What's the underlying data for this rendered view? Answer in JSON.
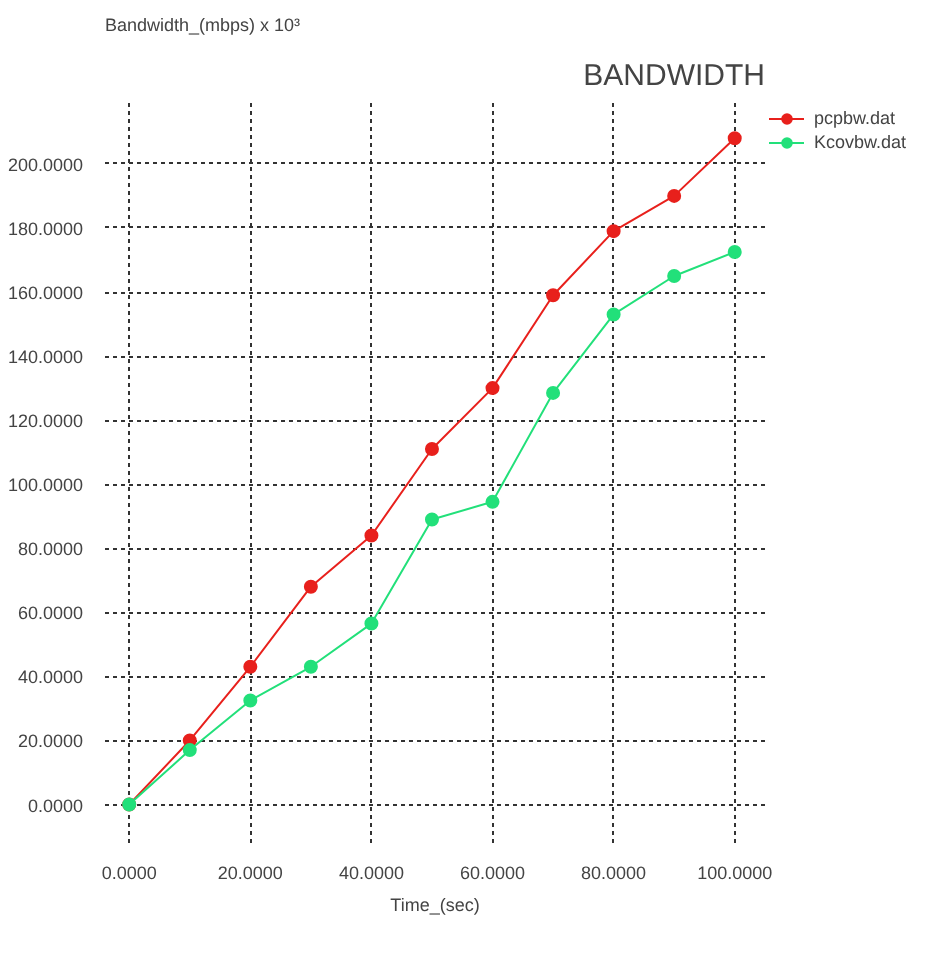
{
  "chart_data": {
    "type": "line",
    "title": "BANDWIDTH",
    "xlabel": "Time_(sec)",
    "ylabel": "Bandwidth_(mbps) x 10³",
    "x": [
      0,
      10,
      20,
      30,
      40,
      50,
      60,
      70,
      80,
      90,
      100
    ],
    "series": [
      {
        "name": "pcpbw.dat",
        "color": "#e8201c",
        "values": [
          0,
          20,
          43,
          68,
          84,
          111,
          130,
          159,
          179,
          190,
          208
        ]
      },
      {
        "name": "Kcovbw.dat",
        "color": "#22e07a",
        "values": [
          0,
          17,
          32.5,
          43,
          56.5,
          89,
          94.5,
          128.5,
          153,
          165,
          172.5
        ]
      }
    ],
    "xlim": [
      -4,
      105
    ],
    "ylim": [
      -12,
      219
    ],
    "xticks": [
      {
        "value": 0,
        "label": "0.0000"
      },
      {
        "value": 20,
        "label": "20.0000"
      },
      {
        "value": 40,
        "label": "40.0000"
      },
      {
        "value": 60,
        "label": "60.0000"
      },
      {
        "value": 80,
        "label": "80.0000"
      },
      {
        "value": 100,
        "label": "100.0000"
      }
    ],
    "yticks": [
      {
        "value": 0,
        "label": "0.0000"
      },
      {
        "value": 20,
        "label": "20.0000"
      },
      {
        "value": 40,
        "label": "40.0000"
      },
      {
        "value": 60,
        "label": "60.0000"
      },
      {
        "value": 80,
        "label": "80.0000"
      },
      {
        "value": 100,
        "label": "100.0000"
      },
      {
        "value": 120,
        "label": "120.0000"
      },
      {
        "value": 140,
        "label": "140.0000"
      },
      {
        "value": 160,
        "label": "160.0000"
      },
      {
        "value": 180,
        "label": "180.0000"
      },
      {
        "value": 200,
        "label": "200.0000"
      }
    ],
    "grid": true,
    "legend": "top right",
    "marker": "circle",
    "line_style": "solid"
  }
}
